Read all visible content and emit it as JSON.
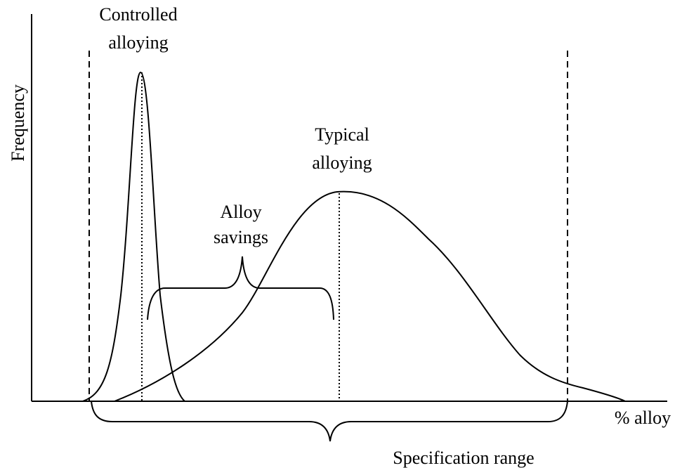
{
  "axes": {
    "y_label": "Frequency",
    "x_label": "% alloy"
  },
  "labels": {
    "controlled": [
      "Controlled",
      "alloying"
    ],
    "typical": [
      "Typical",
      "alloying"
    ],
    "savings": [
      "Alloy",
      "savings"
    ],
    "specification": "Specification range"
  }
}
